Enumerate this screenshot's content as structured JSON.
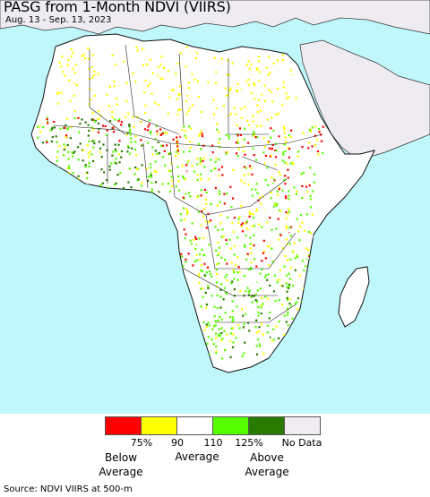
{
  "header": {
    "title": "PASG from 1-Month NDVI (VIIRS)",
    "date_range": "Aug. 13 - Sep. 13, 2023"
  },
  "map": {
    "region": "Africa",
    "ocean_color": "#bff7fb",
    "land_color": "#ffffff",
    "no_data_region_color": "#efecf1",
    "border_color": "#222222"
  },
  "legend": {
    "swatches": [
      {
        "color": "#ff0000"
      },
      {
        "color": "#ffff00"
      },
      {
        "color": "#ffffff"
      },
      {
        "color": "#55ff00"
      },
      {
        "color": "#287a00"
      },
      {
        "color": "#f0ecf2"
      }
    ],
    "ticks": [
      "75%",
      "90",
      "110",
      "125%",
      "No Data"
    ],
    "captions": {
      "below": "Below\nAverage",
      "average": "Average",
      "above": "Above\nAverage"
    }
  },
  "footer": {
    "source": "Source: NDVI VIIRS at 500-m"
  }
}
